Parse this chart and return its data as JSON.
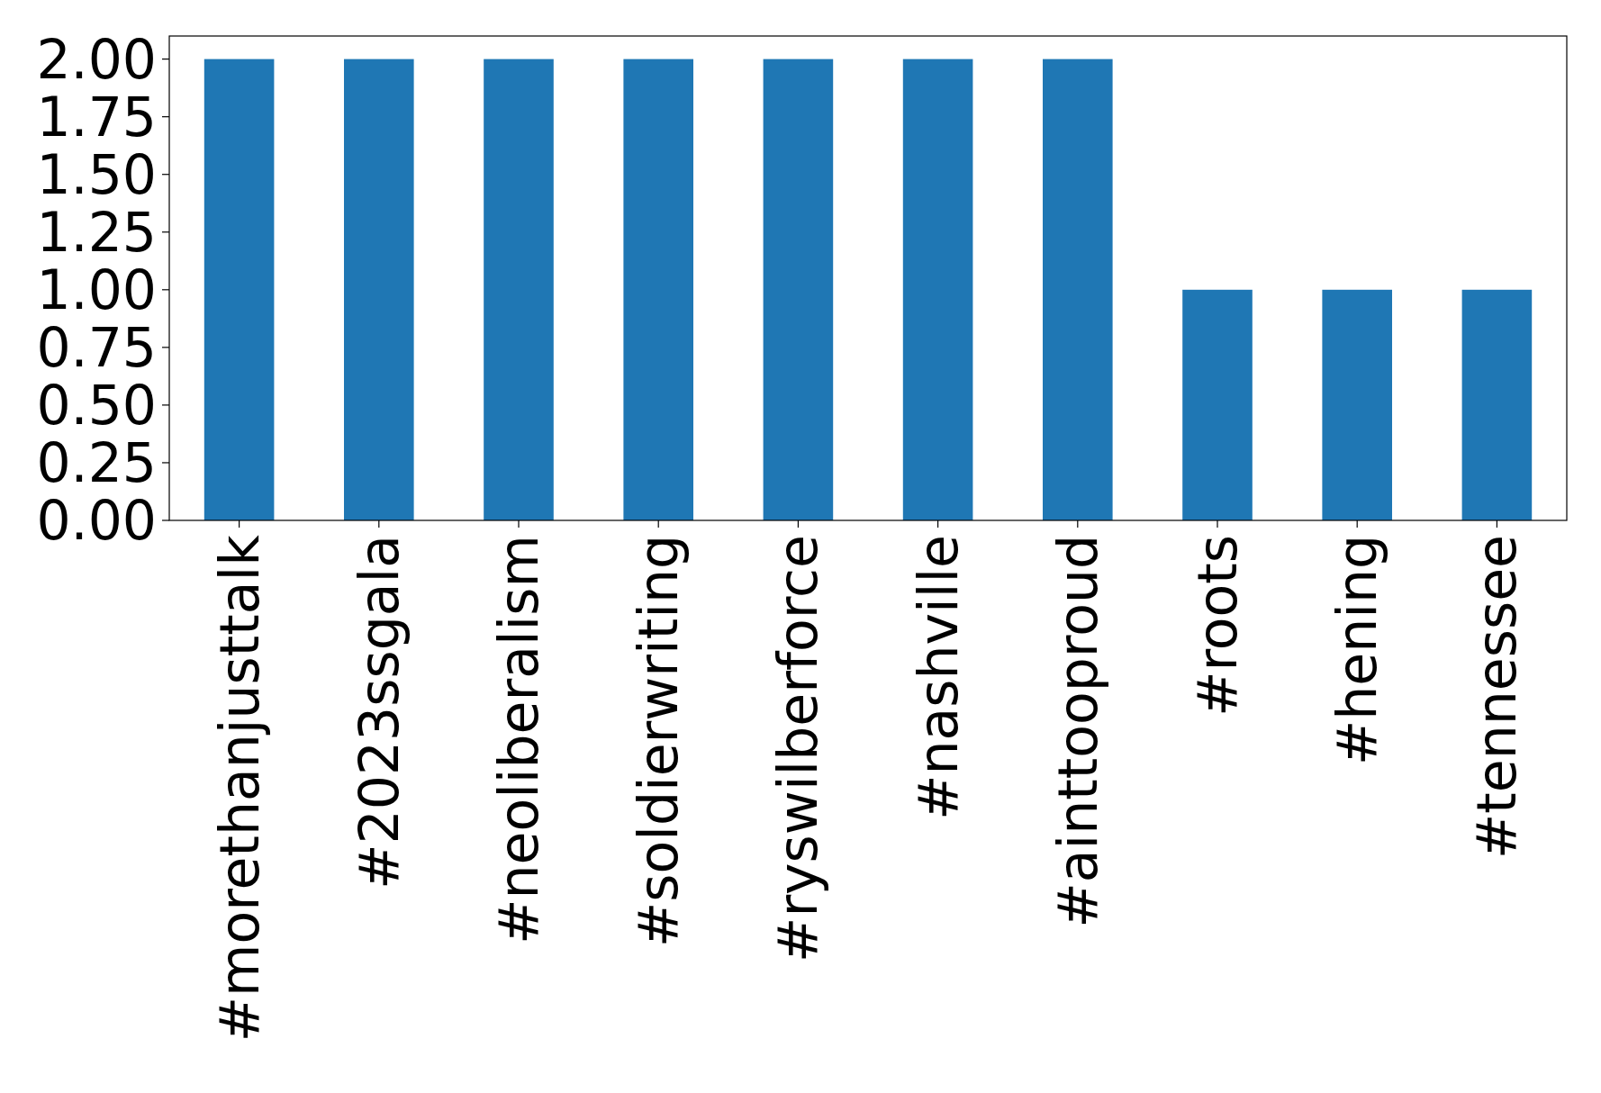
{
  "chart_data": {
    "type": "bar",
    "categories": [
      "#morethanjusttalk",
      "#2023ssgala",
      "#neoliberalism",
      "#soldierwriting",
      "#ryswilberforce",
      "#nashville",
      "#ainttooproud",
      "#roots",
      "#hening",
      "#tennessee"
    ],
    "values": [
      2,
      2,
      2,
      2,
      2,
      2,
      2,
      1,
      1,
      1
    ],
    "color": "#1f77b4",
    "ylim": [
      0,
      2.1
    ],
    "yticks": [
      {
        "value": 0,
        "label": "0.00"
      },
      {
        "value": 0.25,
        "label": "0.25"
      },
      {
        "value": 0.5,
        "label": "0.50"
      },
      {
        "value": 0.75,
        "label": "0.75"
      },
      {
        "value": 1,
        "label": "1.00"
      },
      {
        "value": 1.25,
        "label": "1.25"
      },
      {
        "value": 1.5,
        "label": "1.50"
      },
      {
        "value": 1.75,
        "label": "1.75"
      },
      {
        "value": 2,
        "label": "2.00"
      }
    ]
  }
}
